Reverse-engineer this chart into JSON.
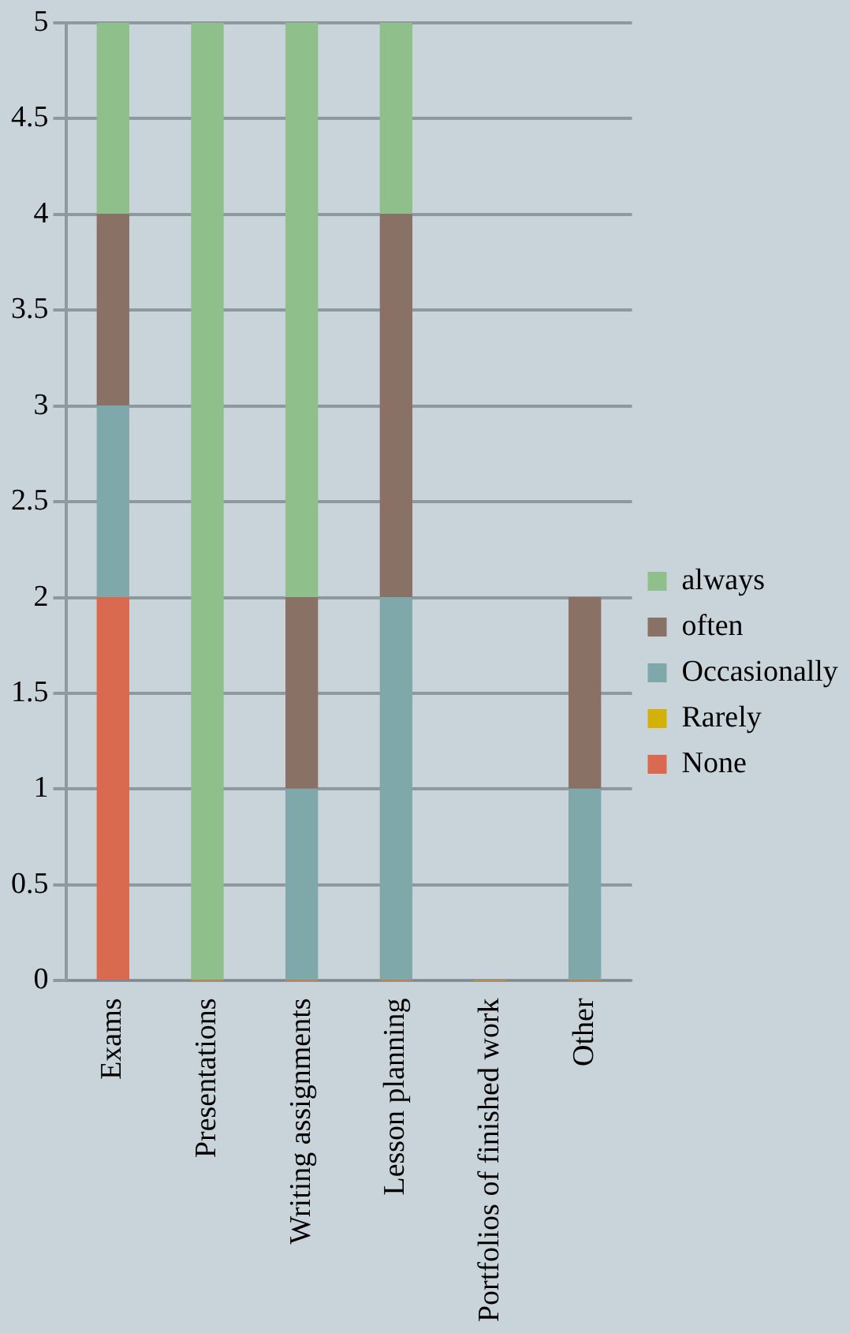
{
  "chart_data": {
    "type": "bar",
    "stacked": true,
    "categories": [
      "Exams",
      "Presentations",
      "Writing assignments",
      "Lesson planning",
      "Portfolios of finished work",
      "Other"
    ],
    "series": [
      {
        "name": "None",
        "color": "#d9694f",
        "values": [
          2,
          0,
          0,
          0,
          0,
          0
        ]
      },
      {
        "name": "Rarely",
        "color": "#d4b106",
        "values": [
          0,
          0,
          0,
          0,
          0,
          0
        ]
      },
      {
        "name": "Occasionally",
        "color": "#7fa8aa",
        "values": [
          1,
          0,
          1,
          2,
          0,
          1
        ]
      },
      {
        "name": "often",
        "color": "#8a7166",
        "values": [
          1,
          0,
          1,
          2,
          0,
          1
        ]
      },
      {
        "name": "always",
        "color": "#8fbf8a",
        "values": [
          1,
          5,
          3,
          1,
          0,
          0
        ]
      }
    ],
    "ylim": [
      0,
      5
    ],
    "yticks": [
      0,
      0.5,
      1,
      1.5,
      2,
      2.5,
      3,
      3.5,
      4,
      4.5,
      5
    ],
    "grid": "y",
    "legend": "right"
  }
}
